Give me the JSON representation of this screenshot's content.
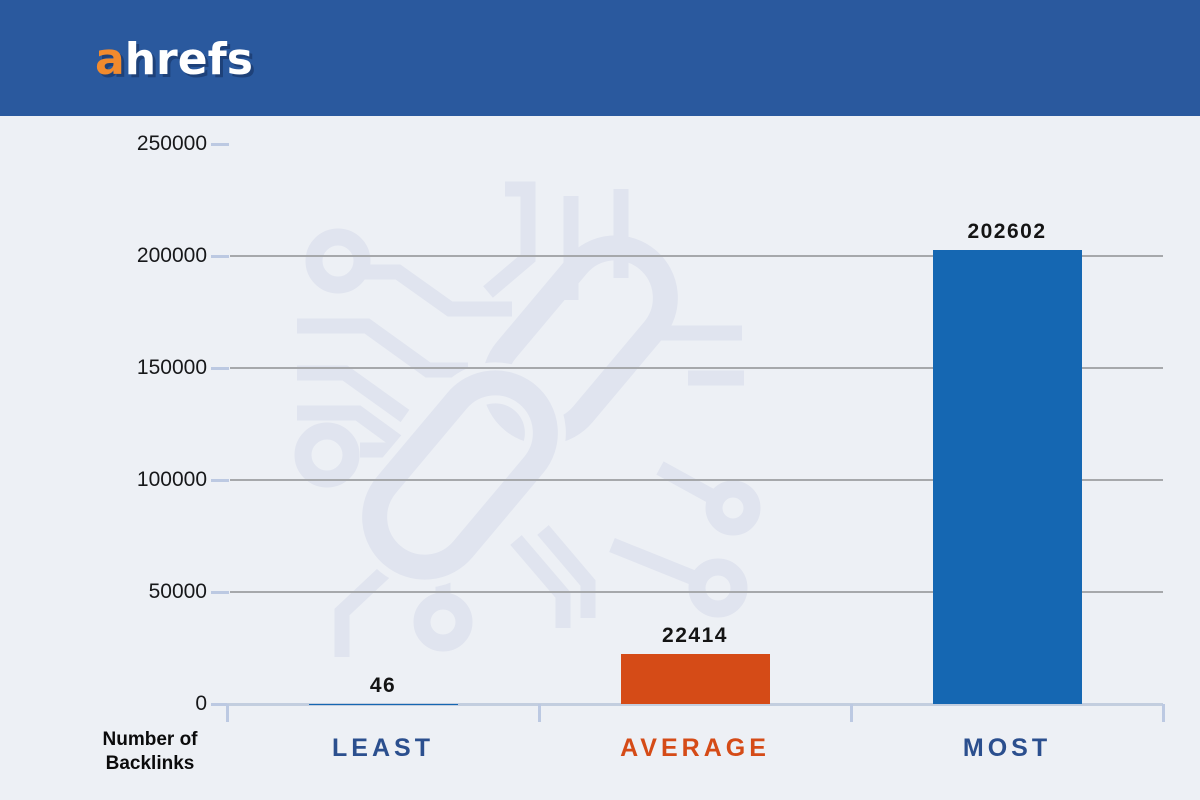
{
  "header": {
    "logo": {
      "prefix": "a",
      "rest": "hrefs"
    }
  },
  "chart_data": {
    "type": "bar",
    "title": "",
    "categories": [
      "LEAST",
      "AVERAGE",
      "MOST"
    ],
    "values": [
      46,
      22414,
      202602
    ],
    "value_labels": [
      "46",
      "22414",
      "202602"
    ],
    "y_ticks": [
      0,
      50000,
      100000,
      150000,
      200000,
      250000
    ],
    "ylim": [
      0,
      250000
    ],
    "ylabel_lines": [
      "Number of",
      "Backlinks"
    ],
    "grid": true,
    "legend": "none",
    "bar_colors": [
      "#1567b2",
      "#d54b17",
      "#1567b2"
    ],
    "category_label_colors": [
      "#2b4f8e",
      "#d54b17",
      "#2b4f8e"
    ],
    "value_label_color": "#141414"
  },
  "colors": {
    "header_bg": "#2a599e",
    "page_bg": "#edf0f5",
    "logo_a": "#f18a2d",
    "logo_rest": "#ffffff",
    "bar_blue": "#1567b2",
    "bar_orange": "#d54b17",
    "gridline": "#a6a8ab",
    "axis": "#c3cedf",
    "tick": "#bcc9e2",
    "watermark": "#e0e4ef"
  }
}
